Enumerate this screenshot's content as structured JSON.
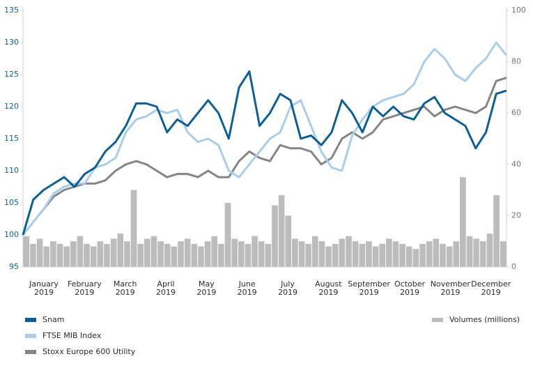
{
  "chart_data": {
    "type": "line",
    "xtick_labels": [
      "January 2019",
      "February 2019",
      "March 2019",
      "April 2019",
      "May 2019",
      "June 2019",
      "July 2019",
      "August 2019",
      "September 2019",
      "October 2019",
      "November 2019",
      "December 2019"
    ],
    "ylim": [
      95,
      135
    ],
    "yticks": [
      95,
      100,
      105,
      110,
      115,
      120,
      125,
      130,
      135
    ],
    "y2lim": [
      0,
      100
    ],
    "y2ticks": [
      0,
      20,
      40,
      60,
      80,
      100
    ],
    "series": [
      {
        "name": "Snam",
        "color": "#0b5f97",
        "values": [
          100,
          105.5,
          107,
          108,
          109,
          107.5,
          109.5,
          110.5,
          113,
          114.5,
          117,
          120.5,
          120.5,
          120,
          116,
          118,
          117,
          119,
          121,
          119,
          115,
          123,
          125.5,
          117,
          119,
          122,
          121,
          115,
          115.5,
          114,
          116,
          121,
          119,
          116,
          120,
          118.5,
          120,
          118.5,
          118,
          120.5,
          121.5,
          119,
          118,
          117,
          113.5,
          116,
          122,
          122.5
        ]
      },
      {
        "name": "FTSE MIB Index",
        "color": "#a8cdec",
        "values": [
          100,
          102,
          104,
          106.5,
          107.5,
          108,
          108,
          110.5,
          111,
          112,
          116,
          118,
          118.5,
          119.5,
          119,
          119.5,
          116,
          114.5,
          115,
          114,
          110,
          109,
          111,
          113,
          115,
          116,
          120,
          121,
          117,
          113,
          110.5,
          110,
          115.5,
          118,
          120,
          121,
          121.5,
          122,
          123.5,
          127,
          129,
          127.5,
          125,
          124,
          126,
          127.5,
          130,
          128
        ]
      },
      {
        "name": "Stoxx Europe 600 Utility",
        "color": "#858585",
        "values": [
          100,
          102,
          104,
          106,
          107,
          107.5,
          108,
          108,
          108.5,
          110,
          111,
          111.5,
          111,
          110,
          109,
          109.5,
          109.5,
          109,
          110,
          109,
          109,
          111.5,
          113,
          112,
          111.5,
          114,
          113.5,
          113.5,
          113,
          111,
          112,
          115,
          116,
          115,
          116,
          118,
          118.5,
          119,
          119.5,
          120,
          118.5,
          119.5,
          120,
          119.5,
          119,
          120,
          124,
          124.5
        ]
      },
      {
        "name": "Volumes (millions)",
        "color": "#bcbcbc",
        "axis": "y2",
        "kind": "bar",
        "values": [
          12,
          9,
          11,
          8,
          10,
          9,
          8,
          10,
          12,
          9,
          8,
          10,
          9,
          11,
          13,
          10,
          30,
          9,
          11,
          12,
          10,
          9,
          8,
          10,
          11,
          9,
          8,
          10,
          12,
          9,
          25,
          11,
          10,
          9,
          12,
          10,
          9,
          24,
          28,
          20,
          11,
          10,
          9,
          12,
          10,
          8,
          9,
          11,
          12,
          10,
          9,
          10,
          8,
          9,
          11,
          10,
          9,
          8,
          7,
          9,
          10,
          11,
          9,
          8,
          10,
          35,
          12,
          11,
          10,
          13,
          28,
          10
        ]
      }
    ]
  }
}
